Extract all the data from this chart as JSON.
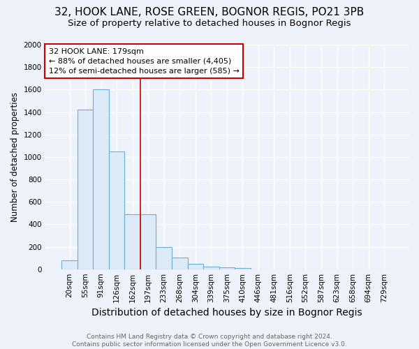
{
  "title1": "32, HOOK LANE, ROSE GREEN, BOGNOR REGIS, PO21 3PB",
  "title2": "Size of property relative to detached houses in Bognor Regis",
  "xlabel": "Distribution of detached houses by size in Bognor Regis",
  "ylabel": "Number of detached properties",
  "categories": [
    "20sqm",
    "55sqm",
    "91sqm",
    "126sqm",
    "162sqm",
    "197sqm",
    "233sqm",
    "268sqm",
    "304sqm",
    "339sqm",
    "375sqm",
    "410sqm",
    "446sqm",
    "481sqm",
    "516sqm",
    "552sqm",
    "587sqm",
    "623sqm",
    "658sqm",
    "694sqm",
    "729sqm"
  ],
  "values": [
    80,
    1420,
    1600,
    1050,
    490,
    490,
    200,
    105,
    45,
    25,
    15,
    10,
    0,
    0,
    0,
    0,
    0,
    0,
    0,
    0,
    0
  ],
  "bar_face_color": "#ddeaf8",
  "bar_edge_color": "#6baed6",
  "vline_x": 4.5,
  "vline_color": "#cc0000",
  "annotation_text": "32 HOOK LANE: 179sqm\n← 88% of detached houses are smaller (4,405)\n12% of semi-detached houses are larger (585) →",
  "annotation_box_color": "white",
  "annotation_box_edge": "#cc0000",
  "ylim": [
    0,
    2000
  ],
  "yticks": [
    0,
    200,
    400,
    600,
    800,
    1000,
    1200,
    1400,
    1600,
    1800,
    2000
  ],
  "bg_color": "#eef2fb",
  "grid_color": "white",
  "footer": "Contains HM Land Registry data © Crown copyright and database right 2024.\nContains public sector information licensed under the Open Government Licence v3.0.",
  "title1_fontsize": 11,
  "title2_fontsize": 9.5,
  "xlabel_fontsize": 10,
  "ylabel_fontsize": 8.5,
  "tick_fontsize": 7.5,
  "footer_fontsize": 6.5,
  "footer_color": "#666666"
}
